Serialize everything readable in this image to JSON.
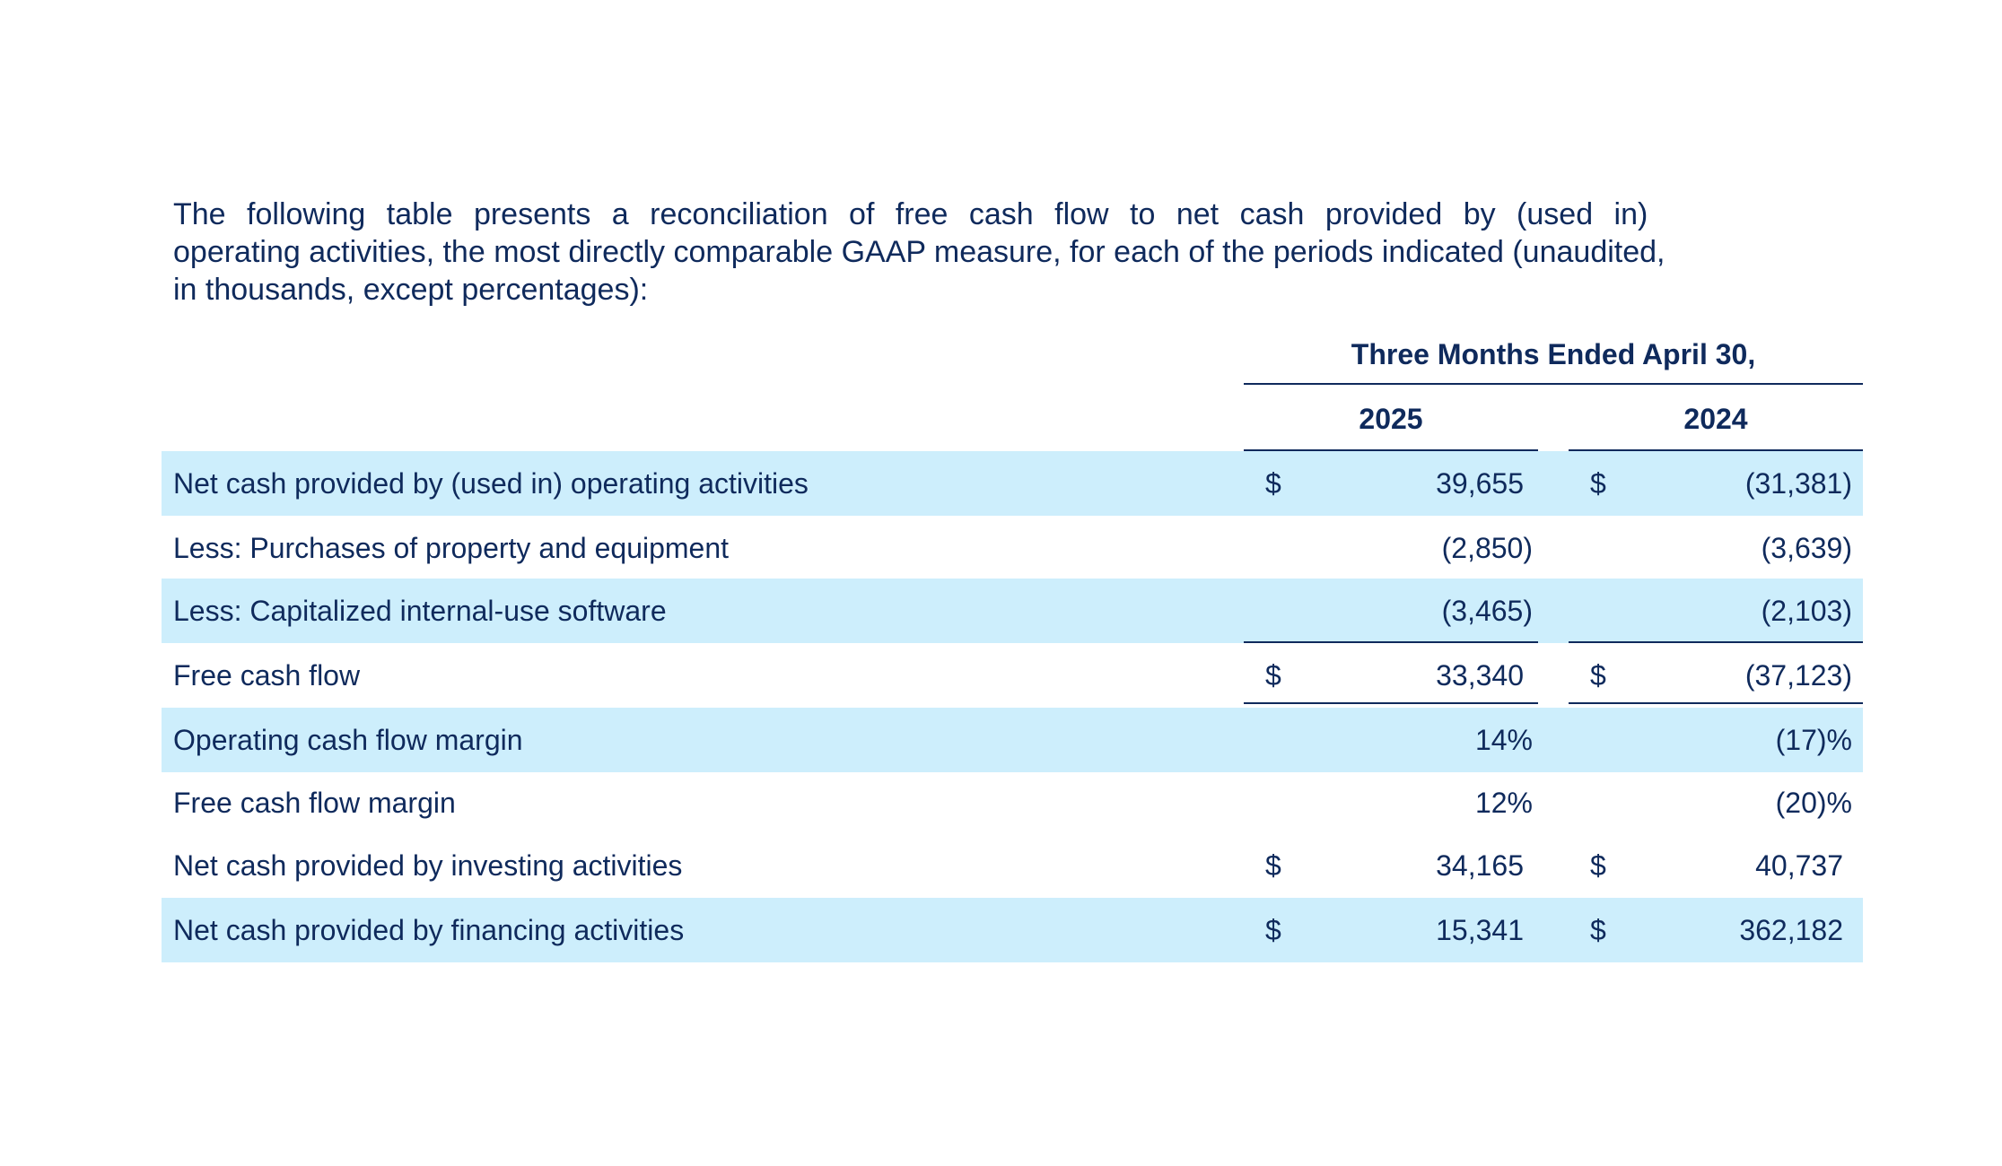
{
  "intro": {
    "line1": "The following table presents a reconciliation of free cash flow to net cash provided by (used in)",
    "line2": "operating activities, the most directly comparable GAAP measure, for each of the periods indicated (unaudited,",
    "line3": "in thousands, except percentages):"
  },
  "table": {
    "period_header": "Three Months Ended April 30,",
    "years": [
      "2025",
      "2024"
    ],
    "rows": [
      {
        "label": "Net cash provided by (used in) operating activities",
        "dollar": "$",
        "v2025": "39,655",
        "v2024": "(31,381)"
      },
      {
        "label": "Less: Purchases of property and equipment",
        "dollar": "",
        "v2025": "(2,850)",
        "v2024": "(3,639)"
      },
      {
        "label": "Less: Capitalized internal-use software",
        "dollar": "",
        "v2025": "(3,465)",
        "v2024": "(2,103)"
      },
      {
        "label": "Free cash flow",
        "dollar": "$",
        "v2025": "33,340",
        "v2024": "(37,123)"
      },
      {
        "label": "Operating cash flow margin",
        "dollar": "",
        "v2025": "14%",
        "v2024": "(17)%"
      },
      {
        "label": "Free cash flow margin",
        "dollar": "",
        "v2025": "12%",
        "v2024": "(20)%"
      },
      {
        "label": "Net cash provided by investing activities",
        "dollar": "$",
        "v2025": "34,165",
        "v2024": "40,737"
      },
      {
        "label": "Net cash provided by financing activities",
        "dollar": "$",
        "v2025": "15,341",
        "v2024": "362,182"
      }
    ]
  },
  "colors": {
    "text": "#0f2a5c",
    "row_shade": "#cdeefc"
  }
}
